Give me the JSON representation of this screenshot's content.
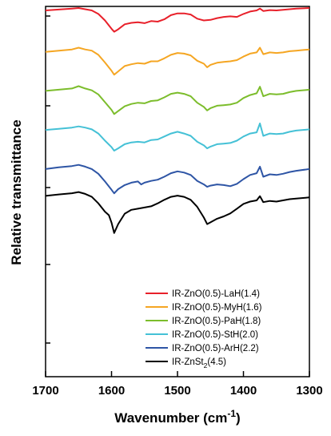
{
  "chart_data": {
    "type": "line",
    "xlabel": "Wavenumber (cm",
    "xlabel_sup": "-1",
    "xlabel_close": ")",
    "ylabel": "Relative transmittance",
    "xlim": [
      1700,
      1300
    ],
    "x_reversed": true,
    "x_ticks": [
      1700,
      1600,
      1500,
      1400,
      1300
    ],
    "x_tick_labels": [
      "1700",
      "1600",
      "1500",
      "1400",
      "1300"
    ],
    "y_ticks": "unlabeled",
    "grid": false,
    "legend_position": "bottom-right",
    "series": [
      {
        "name": "IR-ZnO(0.5)-LaH(1.4)",
        "legend_main": "IR-ZnO(0.5)-LaH(1.4)",
        "color": "#e8202a",
        "offset": 5,
        "points": [
          [
            1700,
            0.92
          ],
          [
            1680,
            0.95
          ],
          [
            1660,
            0.98
          ],
          [
            1650,
            1.0
          ],
          [
            1640,
            0.96
          ],
          [
            1630,
            0.92
          ],
          [
            1620,
            0.8
          ],
          [
            1610,
            0.58
          ],
          [
            1600,
            0.3
          ],
          [
            1596,
            0.2
          ],
          [
            1590,
            0.28
          ],
          [
            1580,
            0.45
          ],
          [
            1570,
            0.5
          ],
          [
            1560,
            0.52
          ],
          [
            1550,
            0.49
          ],
          [
            1540,
            0.56
          ],
          [
            1530,
            0.54
          ],
          [
            1520,
            0.62
          ],
          [
            1510,
            0.76
          ],
          [
            1500,
            0.82
          ],
          [
            1490,
            0.82
          ],
          [
            1480,
            0.78
          ],
          [
            1470,
            0.64
          ],
          [
            1460,
            0.58
          ],
          [
            1450,
            0.6
          ],
          [
            1440,
            0.66
          ],
          [
            1430,
            0.7
          ],
          [
            1420,
            0.72
          ],
          [
            1410,
            0.7
          ],
          [
            1400,
            0.8
          ],
          [
            1390,
            0.88
          ],
          [
            1380,
            0.92
          ],
          [
            1375,
            0.98
          ],
          [
            1370,
            0.9
          ],
          [
            1360,
            0.93
          ],
          [
            1350,
            0.92
          ],
          [
            1340,
            0.94
          ],
          [
            1330,
            0.96
          ],
          [
            1320,
            0.98
          ],
          [
            1300,
            1.0
          ]
        ]
      },
      {
        "name": "IR-ZnO(0.5)-MyH(1.6)",
        "legend_main": "IR-ZnO(0.5)-MyH(1.6)",
        "color": "#f5a623",
        "offset": 4,
        "points": [
          [
            1700,
            0.82
          ],
          [
            1680,
            0.86
          ],
          [
            1660,
            0.9
          ],
          [
            1650,
            0.96
          ],
          [
            1640,
            0.9
          ],
          [
            1630,
            0.86
          ],
          [
            1620,
            0.72
          ],
          [
            1610,
            0.46
          ],
          [
            1600,
            0.18
          ],
          [
            1596,
            0.05
          ],
          [
            1590,
            0.16
          ],
          [
            1580,
            0.34
          ],
          [
            1570,
            0.4
          ],
          [
            1560,
            0.44
          ],
          [
            1550,
            0.42
          ],
          [
            1540,
            0.5
          ],
          [
            1530,
            0.5
          ],
          [
            1520,
            0.6
          ],
          [
            1510,
            0.72
          ],
          [
            1500,
            0.78
          ],
          [
            1490,
            0.76
          ],
          [
            1480,
            0.7
          ],
          [
            1470,
            0.52
          ],
          [
            1460,
            0.42
          ],
          [
            1455,
            0.3
          ],
          [
            1450,
            0.38
          ],
          [
            1440,
            0.45
          ],
          [
            1430,
            0.48
          ],
          [
            1420,
            0.5
          ],
          [
            1410,
            0.54
          ],
          [
            1400,
            0.66
          ],
          [
            1390,
            0.76
          ],
          [
            1380,
            0.8
          ],
          [
            1375,
            0.96
          ],
          [
            1370,
            0.74
          ],
          [
            1360,
            0.8
          ],
          [
            1350,
            0.78
          ],
          [
            1340,
            0.8
          ],
          [
            1330,
            0.84
          ],
          [
            1320,
            0.86
          ],
          [
            1300,
            0.9
          ]
        ]
      },
      {
        "name": "IR-ZnO(0.5)-PaH(1.8)",
        "legend_main": "IR-ZnO(0.5)-PaH(1.8)",
        "color": "#7cbd2c",
        "offset": 3,
        "points": [
          [
            1700,
            0.8
          ],
          [
            1680,
            0.84
          ],
          [
            1660,
            0.88
          ],
          [
            1650,
            0.96
          ],
          [
            1640,
            0.88
          ],
          [
            1630,
            0.82
          ],
          [
            1620,
            0.68
          ],
          [
            1610,
            0.42
          ],
          [
            1600,
            0.16
          ],
          [
            1596,
            0.02
          ],
          [
            1590,
            0.12
          ],
          [
            1580,
            0.28
          ],
          [
            1570,
            0.36
          ],
          [
            1560,
            0.4
          ],
          [
            1550,
            0.38
          ],
          [
            1540,
            0.46
          ],
          [
            1530,
            0.48
          ],
          [
            1520,
            0.58
          ],
          [
            1510,
            0.7
          ],
          [
            1500,
            0.74
          ],
          [
            1490,
            0.7
          ],
          [
            1480,
            0.62
          ],
          [
            1470,
            0.4
          ],
          [
            1460,
            0.26
          ],
          [
            1455,
            0.14
          ],
          [
            1450,
            0.22
          ],
          [
            1440,
            0.3
          ],
          [
            1430,
            0.32
          ],
          [
            1420,
            0.34
          ],
          [
            1410,
            0.4
          ],
          [
            1400,
            0.56
          ],
          [
            1390,
            0.66
          ],
          [
            1380,
            0.72
          ],
          [
            1375,
            0.94
          ],
          [
            1370,
            0.62
          ],
          [
            1360,
            0.7
          ],
          [
            1350,
            0.68
          ],
          [
            1340,
            0.7
          ],
          [
            1330,
            0.76
          ],
          [
            1320,
            0.8
          ],
          [
            1300,
            0.84
          ]
        ]
      },
      {
        "name": "IR-ZnO(0.5)-StH(2.0)",
        "legend_main": "IR-ZnO(0.5)-StH(2.0)",
        "color": "#45c1d6",
        "offset": 2,
        "points": [
          [
            1700,
            0.78
          ],
          [
            1680,
            0.82
          ],
          [
            1660,
            0.86
          ],
          [
            1650,
            0.9
          ],
          [
            1640,
            0.86
          ],
          [
            1630,
            0.8
          ],
          [
            1620,
            0.66
          ],
          [
            1610,
            0.42
          ],
          [
            1600,
            0.2
          ],
          [
            1596,
            0.08
          ],
          [
            1590,
            0.16
          ],
          [
            1580,
            0.3
          ],
          [
            1570,
            0.36
          ],
          [
            1560,
            0.38
          ],
          [
            1550,
            0.36
          ],
          [
            1540,
            0.44
          ],
          [
            1530,
            0.46
          ],
          [
            1520,
            0.56
          ],
          [
            1510,
            0.66
          ],
          [
            1500,
            0.72
          ],
          [
            1490,
            0.66
          ],
          [
            1480,
            0.58
          ],
          [
            1470,
            0.38
          ],
          [
            1460,
            0.26
          ],
          [
            1455,
            0.16
          ],
          [
            1450,
            0.22
          ],
          [
            1440,
            0.3
          ],
          [
            1430,
            0.32
          ],
          [
            1420,
            0.34
          ],
          [
            1410,
            0.42
          ],
          [
            1400,
            0.56
          ],
          [
            1390,
            0.66
          ],
          [
            1380,
            0.7
          ],
          [
            1375,
            1.0
          ],
          [
            1370,
            0.58
          ],
          [
            1360,
            0.66
          ],
          [
            1350,
            0.64
          ],
          [
            1340,
            0.66
          ],
          [
            1330,
            0.72
          ],
          [
            1320,
            0.76
          ],
          [
            1300,
            0.8
          ]
        ]
      },
      {
        "name": "IR-ZnO(0.5)-ArH(2.2)",
        "legend_main": "IR-ZnO(0.5)-ArH(2.2)",
        "color": "#2e55a5",
        "offset": 1,
        "points": [
          [
            1700,
            0.76
          ],
          [
            1680,
            0.82
          ],
          [
            1660,
            0.86
          ],
          [
            1650,
            0.9
          ],
          [
            1640,
            0.84
          ],
          [
            1630,
            0.76
          ],
          [
            1620,
            0.6
          ],
          [
            1610,
            0.34
          ],
          [
            1600,
            0.06
          ],
          [
            1596,
            -0.06
          ],
          [
            1590,
            0.08
          ],
          [
            1580,
            0.22
          ],
          [
            1570,
            0.3
          ],
          [
            1560,
            0.34
          ],
          [
            1555,
            0.24
          ],
          [
            1550,
            0.3
          ],
          [
            1540,
            0.36
          ],
          [
            1530,
            0.4
          ],
          [
            1520,
            0.5
          ],
          [
            1510,
            0.62
          ],
          [
            1500,
            0.68
          ],
          [
            1490,
            0.64
          ],
          [
            1480,
            0.56
          ],
          [
            1470,
            0.36
          ],
          [
            1460,
            0.24
          ],
          [
            1455,
            0.16
          ],
          [
            1450,
            0.2
          ],
          [
            1440,
            0.24
          ],
          [
            1430,
            0.22
          ],
          [
            1420,
            0.18
          ],
          [
            1410,
            0.26
          ],
          [
            1400,
            0.42
          ],
          [
            1390,
            0.56
          ],
          [
            1380,
            0.62
          ],
          [
            1375,
            0.84
          ],
          [
            1370,
            0.5
          ],
          [
            1360,
            0.58
          ],
          [
            1350,
            0.56
          ],
          [
            1340,
            0.6
          ],
          [
            1330,
            0.66
          ],
          [
            1320,
            0.7
          ],
          [
            1300,
            0.76
          ]
        ]
      },
      {
        "name": "IR-ZnSt2(4.5)",
        "legend_main": "IR-ZnSt",
        "legend_sub": "2",
        "legend_tail": "(4.5)",
        "color": "#000000",
        "offset": 0,
        "points": [
          [
            1700,
            1.15
          ],
          [
            1680,
            1.2
          ],
          [
            1660,
            1.24
          ],
          [
            1650,
            1.28
          ],
          [
            1640,
            1.22
          ],
          [
            1630,
            1.12
          ],
          [
            1620,
            0.9
          ],
          [
            1610,
            0.62
          ],
          [
            1604,
            0.5
          ],
          [
            1600,
            0.25
          ],
          [
            1596,
            -0.1
          ],
          [
            1590,
            0.2
          ],
          [
            1580,
            0.55
          ],
          [
            1570,
            0.68
          ],
          [
            1560,
            0.72
          ],
          [
            1550,
            0.76
          ],
          [
            1540,
            0.8
          ],
          [
            1530,
            0.9
          ],
          [
            1520,
            1.02
          ],
          [
            1510,
            1.12
          ],
          [
            1500,
            1.16
          ],
          [
            1490,
            1.12
          ],
          [
            1480,
            1.02
          ],
          [
            1470,
            0.78
          ],
          [
            1460,
            0.42
          ],
          [
            1455,
            0.2
          ],
          [
            1450,
            0.26
          ],
          [
            1440,
            0.38
          ],
          [
            1430,
            0.46
          ],
          [
            1420,
            0.56
          ],
          [
            1410,
            0.72
          ],
          [
            1400,
            0.88
          ],
          [
            1390,
            0.96
          ],
          [
            1380,
            1.0
          ],
          [
            1375,
            1.14
          ],
          [
            1370,
            0.94
          ],
          [
            1360,
            0.98
          ],
          [
            1350,
            0.96
          ],
          [
            1340,
            1.0
          ],
          [
            1330,
            1.04
          ],
          [
            1320,
            1.06
          ],
          [
            1300,
            1.1
          ]
        ]
      }
    ]
  }
}
